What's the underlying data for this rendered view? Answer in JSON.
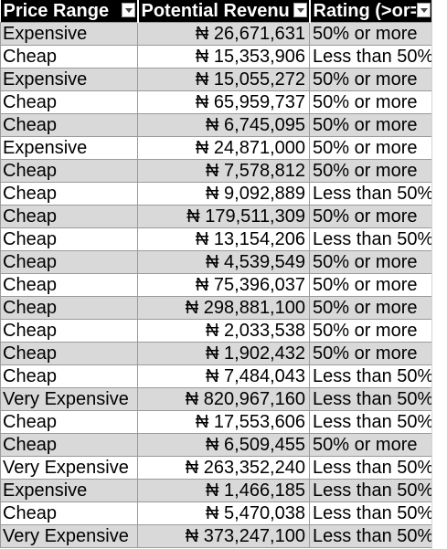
{
  "table": {
    "columns": [
      "Price Range",
      "Potential Revenu",
      "Rating (>or="
    ],
    "rows": [
      [
        "Expensive",
        "₦ 26,671,631",
        "50% or more"
      ],
      [
        "Cheap",
        "₦ 15,353,906",
        "Less than 50%"
      ],
      [
        "Expensive",
        "₦ 15,055,272",
        "50% or more"
      ],
      [
        "Cheap",
        "₦ 65,959,737",
        "50% or more"
      ],
      [
        "Cheap",
        "₦ 6,745,095",
        "50% or more"
      ],
      [
        "Expensive",
        "₦ 24,871,000",
        "50% or more"
      ],
      [
        "Cheap",
        "₦ 7,578,812",
        "50% or more"
      ],
      [
        "Cheap",
        "₦ 9,092,889",
        "Less than 50%"
      ],
      [
        "Cheap",
        "₦ 179,511,309",
        "50% or more"
      ],
      [
        "Cheap",
        "₦ 13,154,206",
        "Less than 50%"
      ],
      [
        "Cheap",
        "₦ 4,539,549",
        "50% or more"
      ],
      [
        "Cheap",
        "₦ 75,396,037",
        "50% or more"
      ],
      [
        "Cheap",
        "₦ 298,881,100",
        "50% or more"
      ],
      [
        "Cheap",
        "₦ 2,033,538",
        "50% or more"
      ],
      [
        "Cheap",
        "₦ 1,902,432",
        "50% or more"
      ],
      [
        "Cheap",
        "₦ 7,484,043",
        "Less than 50%"
      ],
      [
        "Very Expensive",
        "₦ 820,967,160",
        "Less than 50%"
      ],
      [
        "Cheap",
        "₦ 17,553,606",
        "Less than 50%"
      ],
      [
        "Cheap",
        "₦ 6,509,455",
        "50% or more"
      ],
      [
        "Very Expensive",
        "₦ 263,352,240",
        "Less than 50%"
      ],
      [
        "Expensive",
        "₦ 1,466,185",
        "Less than 50%"
      ],
      [
        "Cheap",
        "₦ 5,470,038",
        "Less than 50%"
      ],
      [
        "Very Expensive",
        "₦ 373,247,100",
        "Less than 50%"
      ]
    ]
  },
  "style": {
    "header_bg": "#000000",
    "header_fg": "#ffffff",
    "band_bg": "#d9d9d9",
    "row_bg": "#ffffff",
    "grid_line": "#9a9a9a",
    "filter_icon": "dropdown-arrow-icon"
  }
}
